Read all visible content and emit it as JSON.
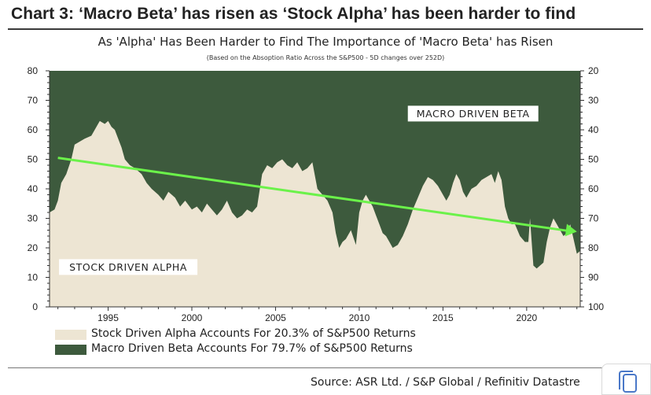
{
  "header": {
    "title": "Chart 3: ‘Macro Beta’ has risen as ‘Stock Alpha’ has been harder to find",
    "subtitle": "As 'Alpha' Has Been Harder to Find The Importance of 'Macro Beta' has Risen",
    "note": "(Based on the Absoption Ratio Across the S&P500 - 5D changes over 252D)"
  },
  "source": "Source: ASR Ltd. / S&P Global / Refinitiv Datastre",
  "copy_button": {
    "icon": "copy-icon"
  },
  "colors": {
    "alpha": "#ede5d3",
    "beta": "#3d5a3d",
    "trend": "#6bf24a",
    "axis": "#333333"
  },
  "chart_data": {
    "type": "area",
    "annotations": [
      "MACRO DRIVEN BETA",
      "STOCK DRIVEN ALPHA"
    ],
    "xlim": [
      1991.5,
      2023.2
    ],
    "x_ticks": [
      1995,
      2000,
      2005,
      2010,
      2015,
      2020
    ],
    "ylim_left": [
      0,
      80
    ],
    "y_ticks_left": [
      0,
      10,
      20,
      30,
      40,
      50,
      60,
      70,
      80
    ],
    "ylim_right": [
      100,
      20
    ],
    "y_ticks_right": [
      20,
      30,
      40,
      50,
      60,
      70,
      80,
      90,
      100
    ],
    "grid": false,
    "legend_position": "bottom",
    "series": [
      {
        "name": "Stock Driven Alpha Accounts For 20.3% of S&P500 Returns",
        "x": [
          1991.5,
          1991.8,
          1992.0,
          1992.2,
          1992.5,
          1992.8,
          1993.0,
          1993.3,
          1993.6,
          1994.0,
          1994.3,
          1994.5,
          1994.8,
          1995.0,
          1995.2,
          1995.4,
          1995.6,
          1995.8,
          1996.0,
          1996.3,
          1996.6,
          1997.0,
          1997.3,
          1997.6,
          1998.0,
          1998.3,
          1998.6,
          1999.0,
          1999.3,
          1999.6,
          2000.0,
          2000.3,
          2000.6,
          2000.9,
          2001.2,
          2001.5,
          2001.8,
          2002.1,
          2002.4,
          2002.7,
          2003.0,
          2003.3,
          2003.6,
          2003.9,
          2004.2,
          2004.5,
          2004.8,
          2005.1,
          2005.4,
          2005.7,
          2006.0,
          2006.3,
          2006.6,
          2006.9,
          2007.2,
          2007.5,
          2007.8,
          2008.1,
          2008.4,
          2008.6,
          2008.8,
          2009.0,
          2009.2,
          2009.5,
          2009.8,
          2010.0,
          2010.2,
          2010.4,
          2010.6,
          2010.8,
          2011.0,
          2011.2,
          2011.4,
          2011.6,
          2011.8,
          2012.0,
          2012.3,
          2012.6,
          2012.9,
          2013.2,
          2013.5,
          2013.8,
          2014.1,
          2014.4,
          2014.7,
          2015.0,
          2015.2,
          2015.4,
          2015.6,
          2015.8,
          2016.0,
          2016.2,
          2016.4,
          2016.7,
          2017.0,
          2017.3,
          2017.6,
          2017.9,
          2018.1,
          2018.3,
          2018.5,
          2018.7,
          2018.9,
          2019.1,
          2019.3,
          2019.6,
          2019.9,
          2020.1,
          2020.2,
          2020.4,
          2020.6,
          2020.8,
          2021.0,
          2021.2,
          2021.4,
          2021.6,
          2021.8,
          2022.0,
          2022.2,
          2022.4,
          2022.6,
          2022.8,
          2023.0,
          2023.2
        ],
        "values": [
          32,
          33,
          36,
          42,
          45,
          50,
          55,
          56,
          57,
          58,
          61,
          63,
          62,
          63,
          61,
          60,
          57,
          54,
          50,
          48,
          47,
          45,
          42,
          40,
          38,
          36,
          39,
          37,
          34,
          36,
          33,
          34,
          32,
          35,
          33,
          31,
          33,
          36,
          32,
          30,
          31,
          33,
          32,
          34,
          45,
          48,
          47,
          49,
          50,
          48,
          47,
          49,
          46,
          47,
          49,
          40,
          38,
          36,
          32,
          25,
          20,
          22,
          23,
          26,
          21,
          32,
          36,
          38,
          36,
          34,
          31,
          28,
          25,
          24,
          22,
          20,
          21,
          24,
          28,
          33,
          37,
          41,
          44,
          43,
          41,
          38,
          36,
          38,
          42,
          45,
          43,
          39,
          37,
          40,
          41,
          43,
          44,
          45,
          42,
          46,
          43,
          34,
          30,
          28,
          28,
          24,
          22,
          22,
          30,
          14,
          13,
          14,
          15,
          22,
          27,
          30,
          28,
          26,
          24,
          25,
          28,
          23,
          18,
          19
        ]
      },
      {
        "name": "Macro Driven Beta Accounts For 79.7% of S&P500 Returns",
        "fill": "remainder to 80"
      },
      {
        "name": "trend",
        "x": [
          1992.0,
          2023.0
        ],
        "values": [
          50.5,
          25.5
        ]
      }
    ]
  }
}
